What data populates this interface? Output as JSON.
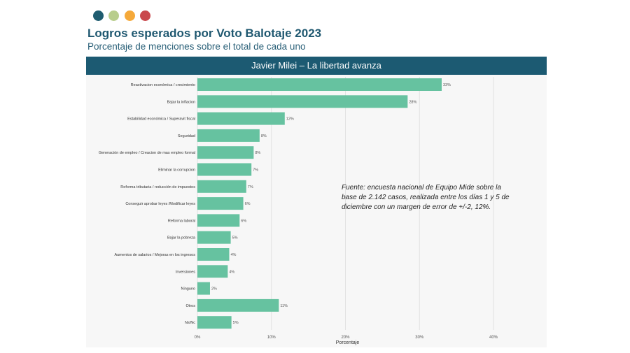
{
  "header": {
    "dots": [
      "#1f5c70",
      "#b8cd8c",
      "#f5a93a",
      "#c9484c"
    ],
    "title": "Logros esperados por Voto Balotaje 2023",
    "subtitle": "Porcentaje de menciones sobre el total de cada uno",
    "banner": "Javier Milei – La libertad avanza"
  },
  "note": "Fuente: encuesta nacional de Equipo Mide sobre la base de 2.142 casos, realizada entre los días 1 y 5 de diciembre con un margen de error de +/-2, 12%.",
  "chart_data": {
    "type": "bar",
    "orientation": "horizontal",
    "categories": [
      "Reactivacion económica / crecimiento",
      "Bajar la inflacion",
      "Estabilidad económica / Superavit fiscal",
      "Seguridad",
      "Generación de empleo / Creacion de mas empleo formal",
      "Eliminar la corrupcion",
      "Reforma tributaria / reducción de impuestos",
      "Conseguir aprobar leyes /Modificar leyes",
      "Reforma laboral",
      "Bajar la pobreza",
      "Aumentos de salarios / Mejoras en los ingresos",
      "Inversiones",
      "Ninguno",
      "Otros",
      "Ns/Nc"
    ],
    "values": [
      33,
      28.4,
      11.8,
      8.4,
      7.6,
      7.3,
      6.6,
      6.2,
      5.7,
      4.5,
      4.3,
      4.1,
      1.7,
      11,
      4.6
    ],
    "data_labels": [
      "33%",
      "28%",
      "12%",
      "8%",
      "8%",
      "7%",
      "7%",
      "6%",
      "6%",
      "5%",
      "4%",
      "4%",
      "2%",
      "11%",
      "5%"
    ],
    "xlabel": "Porcentaje",
    "xlim": [
      0,
      40
    ],
    "xticks": [
      "0%",
      "10%",
      "20%",
      "30%",
      "40%"
    ],
    "bar_color": "#66c2a0",
    "grid": true
  }
}
